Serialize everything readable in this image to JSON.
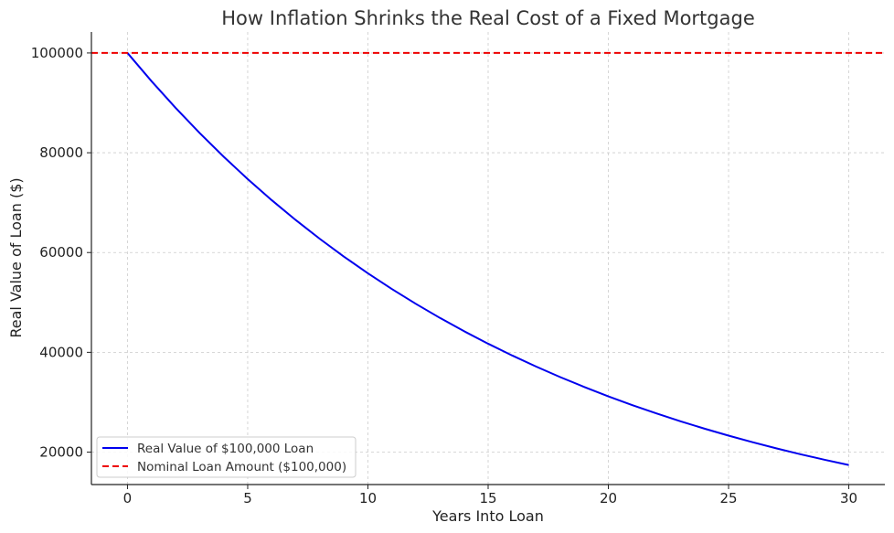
{
  "chart_data": {
    "type": "line",
    "title": "How Inflation Shrinks the Real Cost of a Fixed Mortgage",
    "xlabel": "Years Into Loan",
    "ylabel": "Real Value of Loan ($)",
    "xlim": [
      -1.5,
      31.5
    ],
    "ylim": [
      13500,
      104200
    ],
    "xticks": [
      0,
      5,
      10,
      15,
      20,
      25,
      30
    ],
    "yticks": [
      20000,
      40000,
      60000,
      80000,
      100000
    ],
    "grid": true,
    "legend_position": "lower-left",
    "series": [
      {
        "name": "Real Value of $100,000 Loan",
        "color": "#0000ee",
        "style": "solid",
        "x": [
          0,
          1,
          2,
          3,
          4,
          5,
          6,
          7,
          8,
          9,
          10,
          11,
          12,
          13,
          14,
          15,
          16,
          17,
          18,
          19,
          20,
          21,
          22,
          23,
          24,
          25,
          26,
          27,
          28,
          29,
          30
        ],
        "y": [
          100000,
          94340,
          89000,
          83962,
          79209,
          74726,
          70496,
          66506,
          62741,
          59190,
          55839,
          52679,
          49697,
          46884,
          44230,
          41727,
          39365,
          37136,
          35034,
          33051,
          31180,
          29416,
          27751,
          26180,
          24698,
          23300,
          21981,
          20737,
          19563,
          18456,
          17411
        ]
      },
      {
        "name": "Nominal Loan Amount ($100,000)",
        "color": "#ee0000",
        "style": "dashed",
        "x": [
          -1.5,
          31.5
        ],
        "y": [
          100000,
          100000
        ]
      }
    ]
  }
}
